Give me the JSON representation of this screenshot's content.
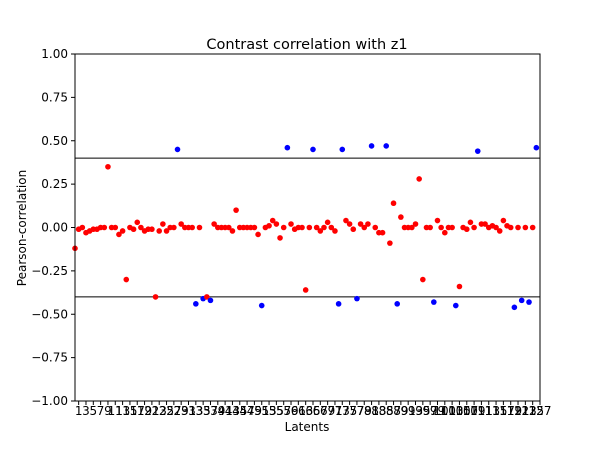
{
  "chart_data": {
    "type": "scatter",
    "title": "Contrast correlation with z1",
    "xlabel": "Latents",
    "ylabel": "Pearson-correlation",
    "xlim": [
      0,
      127
    ],
    "ylim": [
      -1.0,
      1.0
    ],
    "y_ticks": [
      "1.00",
      "0.75",
      "0.50",
      "0.25",
      "0.00",
      "−0.25",
      "−0.50",
      "−0.75",
      "−1.00"
    ],
    "y_tick_values": [
      1.0,
      0.75,
      0.5,
      0.25,
      0.0,
      -0.25,
      -0.5,
      -0.75,
      -1.0
    ],
    "x_tick_values": [
      1,
      3,
      5,
      7,
      9,
      11,
      13,
      15,
      17,
      19,
      21,
      23,
      25,
      27,
      29,
      31,
      33,
      35,
      37,
      39,
      41,
      43,
      45,
      47,
      49,
      51,
      53,
      55,
      57,
      59,
      61,
      63,
      65,
      67,
      69,
      71,
      73,
      75,
      77,
      79,
      81,
      83,
      85,
      87,
      89,
      91,
      93,
      95,
      97,
      99,
      101,
      103,
      105,
      107,
      109,
      111,
      113,
      115,
      117,
      119,
      121,
      123,
      125,
      127
    ],
    "x_tick_labels": [
      "1",
      "3",
      "5",
      "7",
      "9",
      "11",
      "13",
      "15",
      "17",
      "19",
      "21",
      "23",
      "25",
      "27",
      "29",
      "31",
      "33",
      "35",
      "37",
      "39",
      "41",
      "43",
      "45",
      "47",
      "49",
      "51",
      "53",
      "55",
      "57",
      "59",
      "61",
      "63",
      "65",
      "67",
      "69",
      "71",
      "73",
      "75",
      "77",
      "79",
      "81",
      "83",
      "85",
      "87",
      "89",
      "91",
      "93",
      "95",
      "97",
      "99",
      "101",
      "103",
      "105",
      "107",
      "109",
      "111",
      "113",
      "115",
      "117",
      "119",
      "121",
      "123",
      "125",
      "127"
    ],
    "thresholds": [
      0.4,
      -0.4
    ],
    "threshold_color": "#000000",
    "grid": false,
    "colors": {
      "below_threshold": "#ff0000",
      "above_threshold": "#0000ff"
    },
    "values": [
      -0.12,
      -0.01,
      0.0,
      -0.03,
      -0.02,
      -0.01,
      -0.01,
      0.0,
      0.0,
      0.35,
      0.0,
      0.0,
      -0.04,
      -0.02,
      -0.3,
      0.0,
      -0.01,
      0.03,
      0.0,
      -0.02,
      -0.01,
      -0.01,
      -0.4,
      -0.02,
      0.02,
      -0.02,
      0.0,
      0.0,
      0.45,
      0.02,
      0.0,
      0.0,
      0.0,
      -0.44,
      0.0,
      -0.41,
      -0.4,
      -0.42,
      0.02,
      0.0,
      0.0,
      0.0,
      0.0,
      -0.02,
      0.1,
      0.0,
      0.0,
      0.0,
      0.0,
      0.0,
      -0.04,
      -0.45,
      0.0,
      0.01,
      0.04,
      0.02,
      -0.06,
      0.0,
      0.46,
      0.02,
      -0.01,
      0.0,
      0.0,
      -0.36,
      0.0,
      0.45,
      0.0,
      -0.02,
      0.0,
      0.03,
      0.0,
      -0.02,
      -0.44,
      0.45,
      0.04,
      0.02,
      -0.01,
      -0.41,
      0.02,
      0.0,
      0.02,
      0.47,
      0.0,
      -0.03,
      -0.03,
      0.47,
      -0.09,
      0.14,
      -0.44,
      0.06,
      0.0,
      0.0,
      0.0,
      0.02,
      0.28,
      -0.3,
      0.0,
      0.0,
      -0.43,
      0.04,
      0.0,
      -0.03,
      0.0,
      0.0,
      -0.45,
      -0.34,
      0.0,
      -0.01,
      0.03,
      0.0,
      0.44,
      0.02,
      0.02,
      0.0,
      0.01,
      0.0,
      -0.02,
      0.04,
      0.01,
      0.0,
      -0.46,
      0.0,
      -0.42,
      0.0,
      -0.43,
      0.0,
      0.46
    ]
  }
}
